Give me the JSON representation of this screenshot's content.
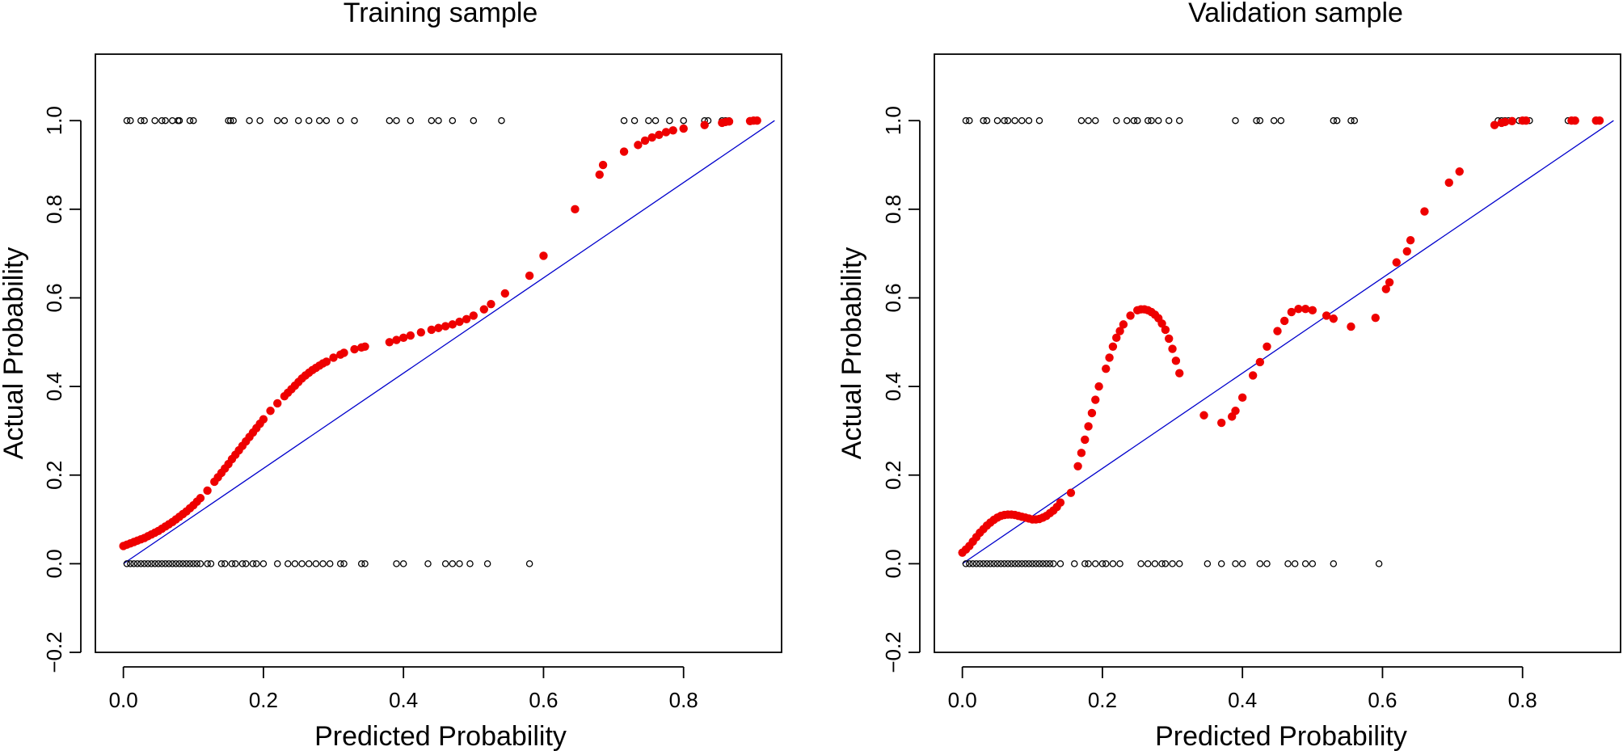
{
  "chart_data": [
    {
      "type": "scatter",
      "title": "Training sample",
      "xlabel": "Predicted Probability",
      "ylabel": "Actual Probability",
      "xlim": [
        -0.04,
        0.94
      ],
      "ylim": [
        -0.2,
        1.15
      ],
      "xticks": [
        "0.0",
        "0.2",
        "0.4",
        "0.6",
        "0.8"
      ],
      "yticks": [
        "−0.2",
        "0.0",
        "0.2",
        "0.4",
        "0.6",
        "0.8",
        "1.0"
      ],
      "reference_line": {
        "from": [
          0,
          0
        ],
        "to": [
          0.93,
          1.0
        ],
        "color": "#0000cc"
      },
      "calibration_color": "#ee0000",
      "outcome_color": "#000000",
      "observed_outcome_1": [
        0.005,
        0.01,
        0.025,
        0.03,
        0.045,
        0.055,
        0.06,
        0.07,
        0.078,
        0.08,
        0.095,
        0.1,
        0.15,
        0.153,
        0.157,
        0.18,
        0.195,
        0.22,
        0.23,
        0.25,
        0.265,
        0.28,
        0.29,
        0.31,
        0.33,
        0.38,
        0.39,
        0.41,
        0.44,
        0.45,
        0.47,
        0.5,
        0.54,
        0.715,
        0.73,
        0.75,
        0.76,
        0.78,
        0.8,
        0.83,
        0.835,
        0.855,
        0.86,
        0.865,
        0.895,
        0.9,
        0.905
      ],
      "observed_outcome_0": [
        0.005,
        0.01,
        0.015,
        0.02,
        0.025,
        0.03,
        0.035,
        0.04,
        0.045,
        0.05,
        0.055,
        0.06,
        0.065,
        0.07,
        0.075,
        0.08,
        0.085,
        0.09,
        0.095,
        0.1,
        0.105,
        0.11,
        0.12,
        0.125,
        0.14,
        0.145,
        0.155,
        0.16,
        0.17,
        0.175,
        0.185,
        0.19,
        0.2,
        0.22,
        0.235,
        0.245,
        0.255,
        0.265,
        0.275,
        0.285,
        0.295,
        0.31,
        0.315,
        0.34,
        0.345,
        0.39,
        0.4,
        0.435,
        0.46,
        0.47,
        0.48,
        0.495,
        0.52,
        0.58
      ],
      "smoothed_calibration": {
        "x": [
          0.0,
          0.005,
          0.01,
          0.015,
          0.02,
          0.025,
          0.03,
          0.035,
          0.04,
          0.045,
          0.05,
          0.055,
          0.06,
          0.065,
          0.07,
          0.075,
          0.08,
          0.085,
          0.09,
          0.095,
          0.1,
          0.105,
          0.11,
          0.12,
          0.13,
          0.135,
          0.14,
          0.145,
          0.15,
          0.155,
          0.16,
          0.165,
          0.17,
          0.175,
          0.18,
          0.185,
          0.19,
          0.195,
          0.2,
          0.21,
          0.22,
          0.23,
          0.235,
          0.24,
          0.245,
          0.25,
          0.255,
          0.26,
          0.265,
          0.27,
          0.275,
          0.28,
          0.285,
          0.29,
          0.3,
          0.31,
          0.315,
          0.33,
          0.34,
          0.345,
          0.38,
          0.39,
          0.4,
          0.41,
          0.425,
          0.44,
          0.45,
          0.46,
          0.47,
          0.48,
          0.49,
          0.5,
          0.515,
          0.525,
          0.545,
          0.58,
          0.6,
          0.645,
          0.68,
          0.685,
          0.715,
          0.735,
          0.745,
          0.755,
          0.765,
          0.775,
          0.785,
          0.8,
          0.83,
          0.855,
          0.86,
          0.865,
          0.895,
          0.9,
          0.905
        ],
        "y": [
          0.04,
          0.043,
          0.046,
          0.049,
          0.052,
          0.055,
          0.058,
          0.062,
          0.066,
          0.07,
          0.074,
          0.079,
          0.084,
          0.089,
          0.094,
          0.1,
          0.106,
          0.112,
          0.118,
          0.125,
          0.132,
          0.14,
          0.148,
          0.165,
          0.185,
          0.195,
          0.205,
          0.215,
          0.225,
          0.236,
          0.246,
          0.256,
          0.266,
          0.276,
          0.286,
          0.296,
          0.306,
          0.316,
          0.326,
          0.345,
          0.362,
          0.378,
          0.386,
          0.394,
          0.402,
          0.41,
          0.418,
          0.425,
          0.431,
          0.437,
          0.442,
          0.447,
          0.452,
          0.456,
          0.465,
          0.472,
          0.476,
          0.484,
          0.488,
          0.49,
          0.5,
          0.505,
          0.51,
          0.515,
          0.522,
          0.528,
          0.532,
          0.536,
          0.54,
          0.546,
          0.552,
          0.56,
          0.574,
          0.586,
          0.61,
          0.65,
          0.695,
          0.8,
          0.878,
          0.9,
          0.93,
          0.945,
          0.955,
          0.962,
          0.968,
          0.974,
          0.978,
          0.982,
          0.99,
          0.995,
          0.997,
          0.998,
          0.999,
          1.0,
          1.0
        ]
      }
    },
    {
      "type": "scatter",
      "title": "Validation sample",
      "xlabel": "Predicted Probability",
      "ylabel": "Actual Probability",
      "xlim": [
        -0.04,
        0.94
      ],
      "ylim": [
        -0.2,
        1.15
      ],
      "xticks": [
        "0.0",
        "0.2",
        "0.4",
        "0.6",
        "0.8"
      ],
      "yticks": [
        "−0.2",
        "0.0",
        "0.2",
        "0.4",
        "0.6",
        "0.8",
        "1.0"
      ],
      "reference_line": {
        "from": [
          0,
          0
        ],
        "to": [
          0.93,
          1.0
        ],
        "color": "#0000cc"
      },
      "calibration_color": "#ee0000",
      "outcome_color": "#000000",
      "observed_outcome_1": [
        0.005,
        0.01,
        0.03,
        0.035,
        0.05,
        0.06,
        0.065,
        0.075,
        0.085,
        0.095,
        0.11,
        0.17,
        0.18,
        0.19,
        0.22,
        0.235,
        0.245,
        0.25,
        0.265,
        0.27,
        0.28,
        0.295,
        0.31,
        0.39,
        0.42,
        0.425,
        0.445,
        0.455,
        0.53,
        0.535,
        0.555,
        0.56,
        0.765,
        0.77,
        0.775,
        0.78,
        0.795,
        0.8,
        0.81,
        0.865,
        0.87,
        0.875,
        0.91
      ],
      "observed_outcome_0": [
        0.005,
        0.01,
        0.015,
        0.02,
        0.025,
        0.03,
        0.035,
        0.04,
        0.045,
        0.05,
        0.055,
        0.06,
        0.065,
        0.07,
        0.075,
        0.08,
        0.085,
        0.09,
        0.095,
        0.1,
        0.105,
        0.11,
        0.115,
        0.12,
        0.125,
        0.13,
        0.14,
        0.16,
        0.175,
        0.18,
        0.19,
        0.2,
        0.205,
        0.215,
        0.225,
        0.255,
        0.265,
        0.275,
        0.285,
        0.29,
        0.3,
        0.31,
        0.35,
        0.37,
        0.39,
        0.4,
        0.425,
        0.435,
        0.465,
        0.475,
        0.49,
        0.5,
        0.53,
        0.595
      ],
      "smoothed_calibration": {
        "x": [
          0.0,
          0.005,
          0.01,
          0.015,
          0.02,
          0.025,
          0.03,
          0.035,
          0.04,
          0.045,
          0.05,
          0.055,
          0.06,
          0.065,
          0.07,
          0.075,
          0.08,
          0.085,
          0.09,
          0.095,
          0.1,
          0.105,
          0.11,
          0.115,
          0.12,
          0.125,
          0.13,
          0.135,
          0.14,
          0.155,
          0.165,
          0.17,
          0.175,
          0.18,
          0.185,
          0.19,
          0.195,
          0.205,
          0.21,
          0.215,
          0.22,
          0.225,
          0.23,
          0.24,
          0.25,
          0.255,
          0.26,
          0.265,
          0.27,
          0.275,
          0.28,
          0.285,
          0.29,
          0.295,
          0.3,
          0.305,
          0.31,
          0.345,
          0.37,
          0.385,
          0.39,
          0.4,
          0.415,
          0.425,
          0.435,
          0.45,
          0.46,
          0.47,
          0.48,
          0.49,
          0.5,
          0.52,
          0.53,
          0.555,
          0.59,
          0.605,
          0.61,
          0.62,
          0.635,
          0.64,
          0.66,
          0.695,
          0.71,
          0.76,
          0.77,
          0.775,
          0.785,
          0.8,
          0.805,
          0.87,
          0.875,
          0.905,
          0.91
        ],
        "y": [
          0.025,
          0.032,
          0.04,
          0.05,
          0.06,
          0.07,
          0.078,
          0.086,
          0.093,
          0.099,
          0.104,
          0.108,
          0.11,
          0.111,
          0.111,
          0.11,
          0.108,
          0.106,
          0.104,
          0.102,
          0.1,
          0.1,
          0.101,
          0.104,
          0.108,
          0.114,
          0.12,
          0.128,
          0.138,
          0.16,
          0.22,
          0.25,
          0.28,
          0.31,
          0.34,
          0.37,
          0.4,
          0.44,
          0.465,
          0.49,
          0.51,
          0.525,
          0.54,
          0.56,
          0.572,
          0.574,
          0.574,
          0.572,
          0.568,
          0.562,
          0.554,
          0.542,
          0.528,
          0.508,
          0.485,
          0.458,
          0.43,
          0.335,
          0.318,
          0.332,
          0.345,
          0.375,
          0.425,
          0.455,
          0.49,
          0.525,
          0.548,
          0.568,
          0.575,
          0.575,
          0.572,
          0.56,
          0.553,
          0.535,
          0.555,
          0.62,
          0.635,
          0.68,
          0.705,
          0.73,
          0.795,
          0.86,
          0.885,
          0.99,
          0.995,
          0.997,
          0.999,
          1.0,
          1.0,
          1.0,
          1.0,
          1.0,
          1.0
        ]
      }
    }
  ]
}
